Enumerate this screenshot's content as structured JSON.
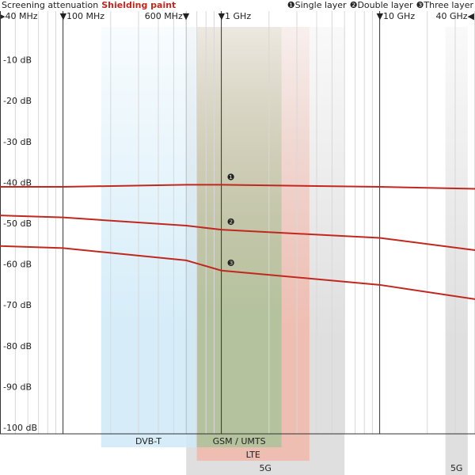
{
  "chart_data": {
    "type": "line",
    "title": "Screening attenuation",
    "subtitle": "Shielding paint",
    "x": [
      40,
      100,
      600,
      1000,
      10000,
      40000
    ],
    "xlog": true,
    "xlim": [
      40,
      40000
    ],
    "xticks": [
      {
        "value": 40,
        "label": "▸40 MHz"
      },
      {
        "value": 100,
        "label": "▼100 MHz"
      },
      {
        "value": 600,
        "label": "600 MHz▼"
      },
      {
        "value": 1000,
        "label": "▼1 GHz"
      },
      {
        "value": 10000,
        "label": "▼10 GHz"
      },
      {
        "value": 40000,
        "label": "40 GHz◀"
      }
    ],
    "xminorticks": [
      50,
      60,
      70,
      80,
      90,
      200,
      300,
      400,
      500,
      700,
      800,
      900,
      2000,
      3000,
      4000,
      5000,
      6000,
      7000,
      8000,
      9000,
      20000,
      30000
    ],
    "ylim": [
      -100,
      0
    ],
    "yticks": [
      {
        "value": -10,
        "label": "-10 dB"
      },
      {
        "value": -20,
        "label": "-20 dB"
      },
      {
        "value": -30,
        "label": "-30 dB"
      },
      {
        "value": -40,
        "label": "-40 dB"
      },
      {
        "value": -50,
        "label": "-50 dB"
      },
      {
        "value": -60,
        "label": "-60 dB"
      },
      {
        "value": -70,
        "label": "-70 dB"
      },
      {
        "value": -80,
        "label": "-80 dB"
      },
      {
        "value": -90,
        "label": "-90 dB"
      },
      {
        "value": -100,
        "label": "-100 dB"
      }
    ],
    "series": [
      {
        "name": "Single layer",
        "symbol": "❶",
        "color": "#c0281e",
        "values": [
          -40.5,
          -40.5,
          -40,
          -40,
          -40.5,
          -41
        ]
      },
      {
        "name": "Double layer",
        "symbol": "❷",
        "color": "#c0281e",
        "values": [
          -47.5,
          -48,
          -50,
          -51,
          -53,
          -56
        ]
      },
      {
        "name": "Three layer",
        "symbol": "❸",
        "color": "#c0281e",
        "values": [
          -55,
          -55.5,
          -58.5,
          -61,
          -64.5,
          -68
        ]
      }
    ],
    "bands": [
      {
        "name": "5G",
        "color": "#d9d9d9",
        "range": [
          600,
          6000
        ]
      },
      {
        "name": "LTE",
        "color": "#f2b8aa",
        "range": [
          700,
          3600
        ]
      },
      {
        "name": "GSM / UMTS",
        "color": "#a9c39a",
        "range": [
          700,
          2400
        ]
      },
      {
        "name": "DVB-T",
        "color": "#cfeaf8",
        "range": [
          174,
          690
        ]
      },
      {
        "name": "5G",
        "color": "#d9d9d9",
        "range": [
          26000,
          36000
        ]
      }
    ]
  }
}
